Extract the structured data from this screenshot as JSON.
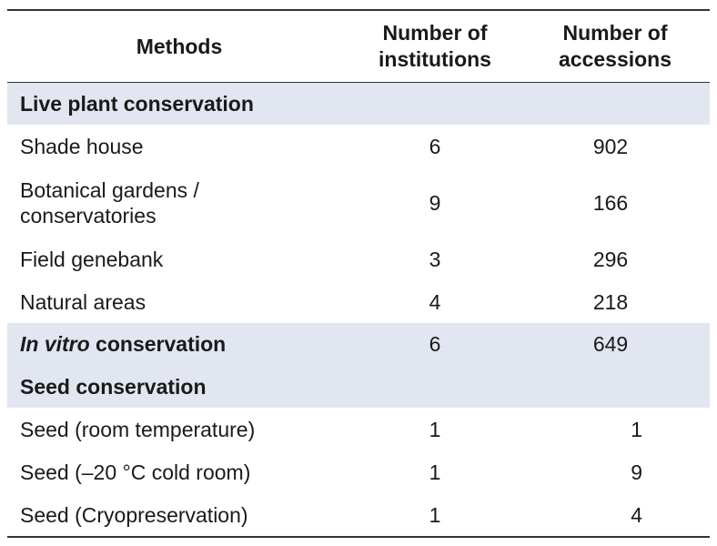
{
  "table": {
    "headers": {
      "methods": "Methods",
      "institutions_line1": "Number of",
      "institutions_line2": "institutions",
      "accessions_line1": "Number of",
      "accessions_line2": "accessions"
    },
    "sections": {
      "live_plant": "Live plant conservation",
      "in_vitro_italic": "In vitro",
      "in_vitro_rest": " conservation",
      "in_vitro_institutions": "6",
      "in_vitro_accessions": "649",
      "seed": "Seed conservation"
    },
    "rows": [
      {
        "method": "Shade house",
        "institutions": "6",
        "accessions": "902"
      },
      {
        "method_line1": "Botanical gardens /",
        "method_line2": "conservatories",
        "institutions": "9",
        "accessions": "166"
      },
      {
        "method": "Field genebank",
        "institutions": "3",
        "accessions": "296"
      },
      {
        "method": "Natural areas",
        "institutions": "4",
        "accessions": "218"
      },
      {
        "method": "Seed (room temperature)",
        "institutions": "1",
        "accessions": "1"
      },
      {
        "method": "Seed (–20 °C cold room)",
        "institutions": "1",
        "accessions": "9"
      },
      {
        "method": "Seed (Cryopreservation)",
        "institutions": "1",
        "accessions": "4"
      }
    ],
    "colors": {
      "section_band": "#e2e6f1",
      "rule": "#333333"
    }
  }
}
